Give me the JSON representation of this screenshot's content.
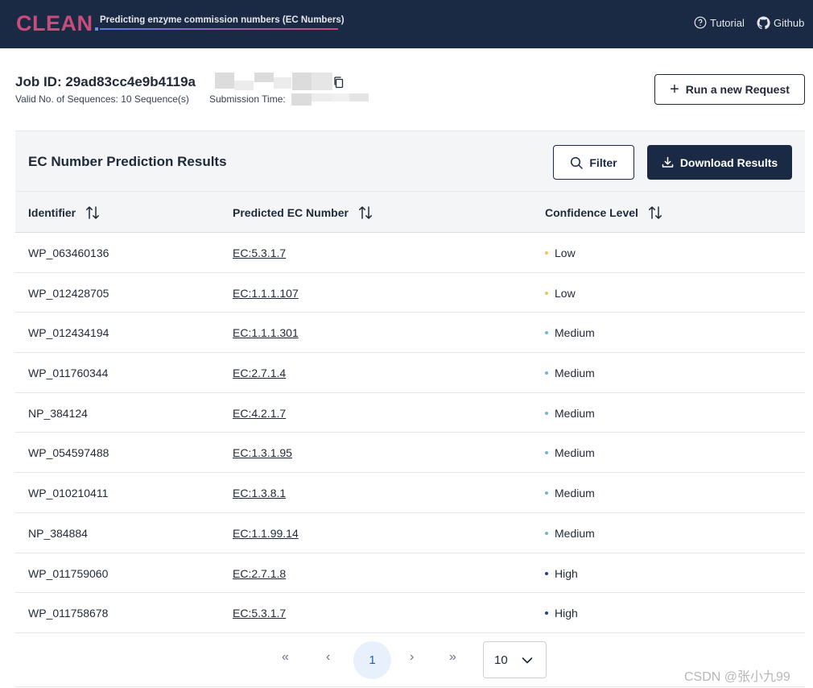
{
  "header": {
    "logo": "CLEAN",
    "tagline": "Predicting enzyme commission numbers (EC Numbers)",
    "nav": [
      {
        "label": "Tutorial",
        "icon": "help-circle-icon"
      },
      {
        "label": "Github",
        "icon": "github-icon"
      }
    ],
    "colors": {
      "bar": "#1a2a44",
      "logo": "#c84d7a"
    }
  },
  "job": {
    "title": "Job ID: 29ad83cc4e9b4119a",
    "valid_sequences": "Valid No. of Sequences: 10 Sequence(s)",
    "submission_time_label": "Submission Time:"
  },
  "actions": {
    "new_request": "Run a new Request",
    "filter": "Filter",
    "download": "Download Results"
  },
  "results": {
    "title": "EC Number Prediction Results",
    "columns": [
      "Identifier",
      "Predicted EC Number",
      "Confidence Level"
    ],
    "rows": [
      {
        "id": "WP_063460136",
        "ec": "EC:5.3.1.7",
        "confidence": "Low"
      },
      {
        "id": "WP_012428705",
        "ec": "EC:1.1.1.107",
        "confidence": "Low"
      },
      {
        "id": "WP_012434194",
        "ec": "EC:1.1.1.301",
        "confidence": "Medium"
      },
      {
        "id": "WP_011760344",
        "ec": "EC:2.7.1.4",
        "confidence": "Medium"
      },
      {
        "id": "NP_384124",
        "ec": "EC:4.2.1.7",
        "confidence": "Medium"
      },
      {
        "id": "WP_054597488",
        "ec": "EC:1.3.1.95",
        "confidence": "Medium"
      },
      {
        "id": "WP_010210411",
        "ec": "EC:1.3.8.1",
        "confidence": "Medium"
      },
      {
        "id": "NP_384884",
        "ec": "EC:1.1.99.14",
        "confidence": "Medium"
      },
      {
        "id": "WP_011759060",
        "ec": "EC:2.7.1.8",
        "confidence": "High"
      },
      {
        "id": "WP_011758678",
        "ec": "EC:5.3.1.7",
        "confidence": "High"
      }
    ],
    "confidence_colors": {
      "Low": "#f2c15b",
      "Medium": "#6fb6dd",
      "High": "#1f3f8f"
    }
  },
  "pagination": {
    "first": "«",
    "prev": "‹",
    "current_page": "1",
    "next": "›",
    "last": "»",
    "per_page": "10"
  },
  "watermark": "CSDN @张小九99"
}
